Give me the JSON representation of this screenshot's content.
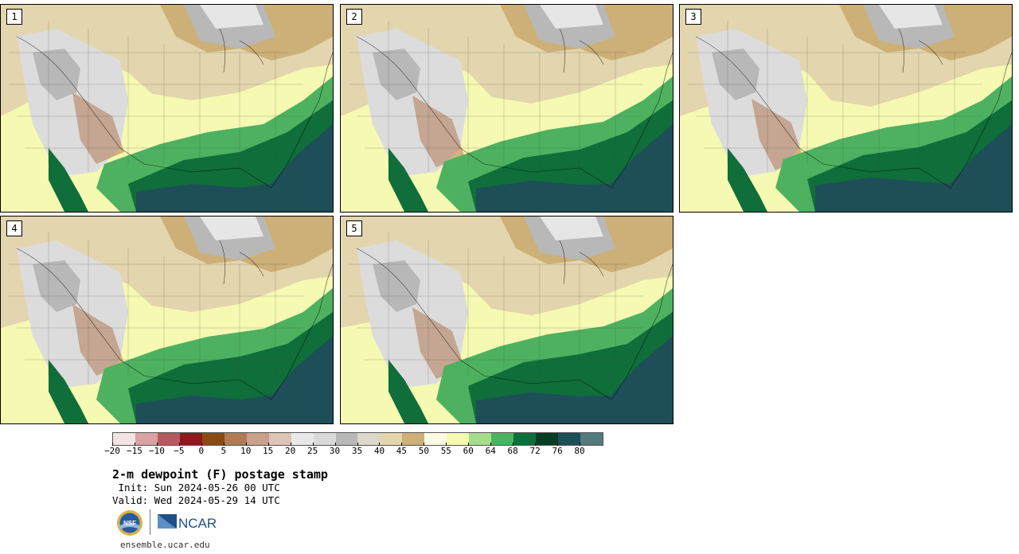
{
  "panels": [
    {
      "label": "1",
      "variant": 0
    },
    {
      "label": "2",
      "variant": 1
    },
    {
      "label": "3",
      "variant": 2
    },
    {
      "label": "4",
      "variant": 3
    },
    {
      "label": "5",
      "variant": 4
    }
  ],
  "colorbar": {
    "colors": [
      "#f2e4e4",
      "#d8a2a4",
      "#b55a5e",
      "#8e1a20",
      "#8a4a14",
      "#b07a56",
      "#c9a08a",
      "#ddc4b4",
      "#e8e8e8",
      "#d9d9d9",
      "#b8b8b8",
      "#ddd8cc",
      "#e3d5ad",
      "#cdb077",
      "#fbfbe4",
      "#f5f9b2",
      "#a6dc8e",
      "#4eb160",
      "#0f6e3a",
      "#063d23",
      "#1e4e58",
      "#537a7c"
    ],
    "ticks": [
      "−20",
      "−15",
      "−10",
      "−5",
      "0",
      "5",
      "10",
      "15",
      "20",
      "25",
      "30",
      "35",
      "40",
      "45",
      "50",
      "55",
      "60",
      "64",
      "68",
      "72",
      "76",
      "80"
    ]
  },
  "title": "2-m dewpoint (F) postage stamp",
  "init": " Init: Sun 2024-05-26 00 UTC",
  "valid": "Valid: Wed 2024-05-29 14 UTC",
  "logo_text": {
    "nsf": "NSF",
    "ncar": "NCAR"
  },
  "footer": "ensemble.ucar.edu",
  "colors": {
    "tan": "#cdb077",
    "lighttan": "#e3d5ad",
    "gray": "#b8b8b8",
    "lightgray": "#dcdcdc",
    "green": "#4eb160",
    "darkgreen": "#0f6e3a",
    "teal": "#1e4e58",
    "yellow": "#f5f9b2",
    "brown": "#b07a56"
  }
}
